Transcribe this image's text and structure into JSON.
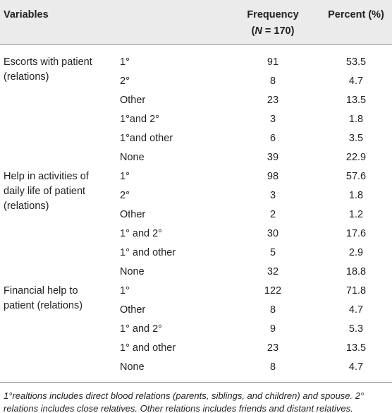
{
  "table": {
    "header": {
      "variables": "Variables",
      "frequency": "Frequency",
      "frequency_sub": [
        "(",
        "N",
        " = 170)"
      ],
      "percent": "Percent (%)"
    },
    "groups": [
      {
        "label_lines": [
          "Escorts with patient",
          "(relations)"
        ],
        "rows": [
          [
            "1°",
            91,
            53.5
          ],
          [
            "2°",
            8,
            4.7
          ],
          [
            "Other",
            23,
            13.5
          ],
          [
            "1°and 2°",
            3,
            1.8
          ],
          [
            "1°and other",
            6,
            3.5
          ],
          [
            "None",
            39,
            22.9
          ]
        ]
      },
      {
        "label_lines": [
          "Help in activities of",
          "daily life of patient",
          "(relations)"
        ],
        "rows": [
          [
            "1°",
            98,
            57.6
          ],
          [
            "2°",
            3,
            1.8
          ],
          [
            "Other",
            2,
            1.2
          ],
          [
            "1° and 2°",
            30,
            17.6
          ],
          [
            "1° and other",
            5,
            2.9
          ],
          [
            "None",
            32,
            18.8
          ]
        ]
      },
      {
        "label_lines": [
          "Financial help to",
          "patient (relations)"
        ],
        "rows": [
          [
            "1°",
            122,
            71.8
          ],
          [
            "Other",
            8,
            4.7
          ],
          [
            "1° and 2°",
            9,
            5.3
          ],
          [
            "1° and other",
            23,
            13.5
          ],
          [
            "None",
            8,
            4.7
          ]
        ]
      }
    ],
    "footnote_lines": [
      "1°realtions includes direct blood relations (parents, siblings, and children) and spouse. 2°",
      "relations includes close relatives. Other relations includes friends and distant relatives."
    ]
  }
}
